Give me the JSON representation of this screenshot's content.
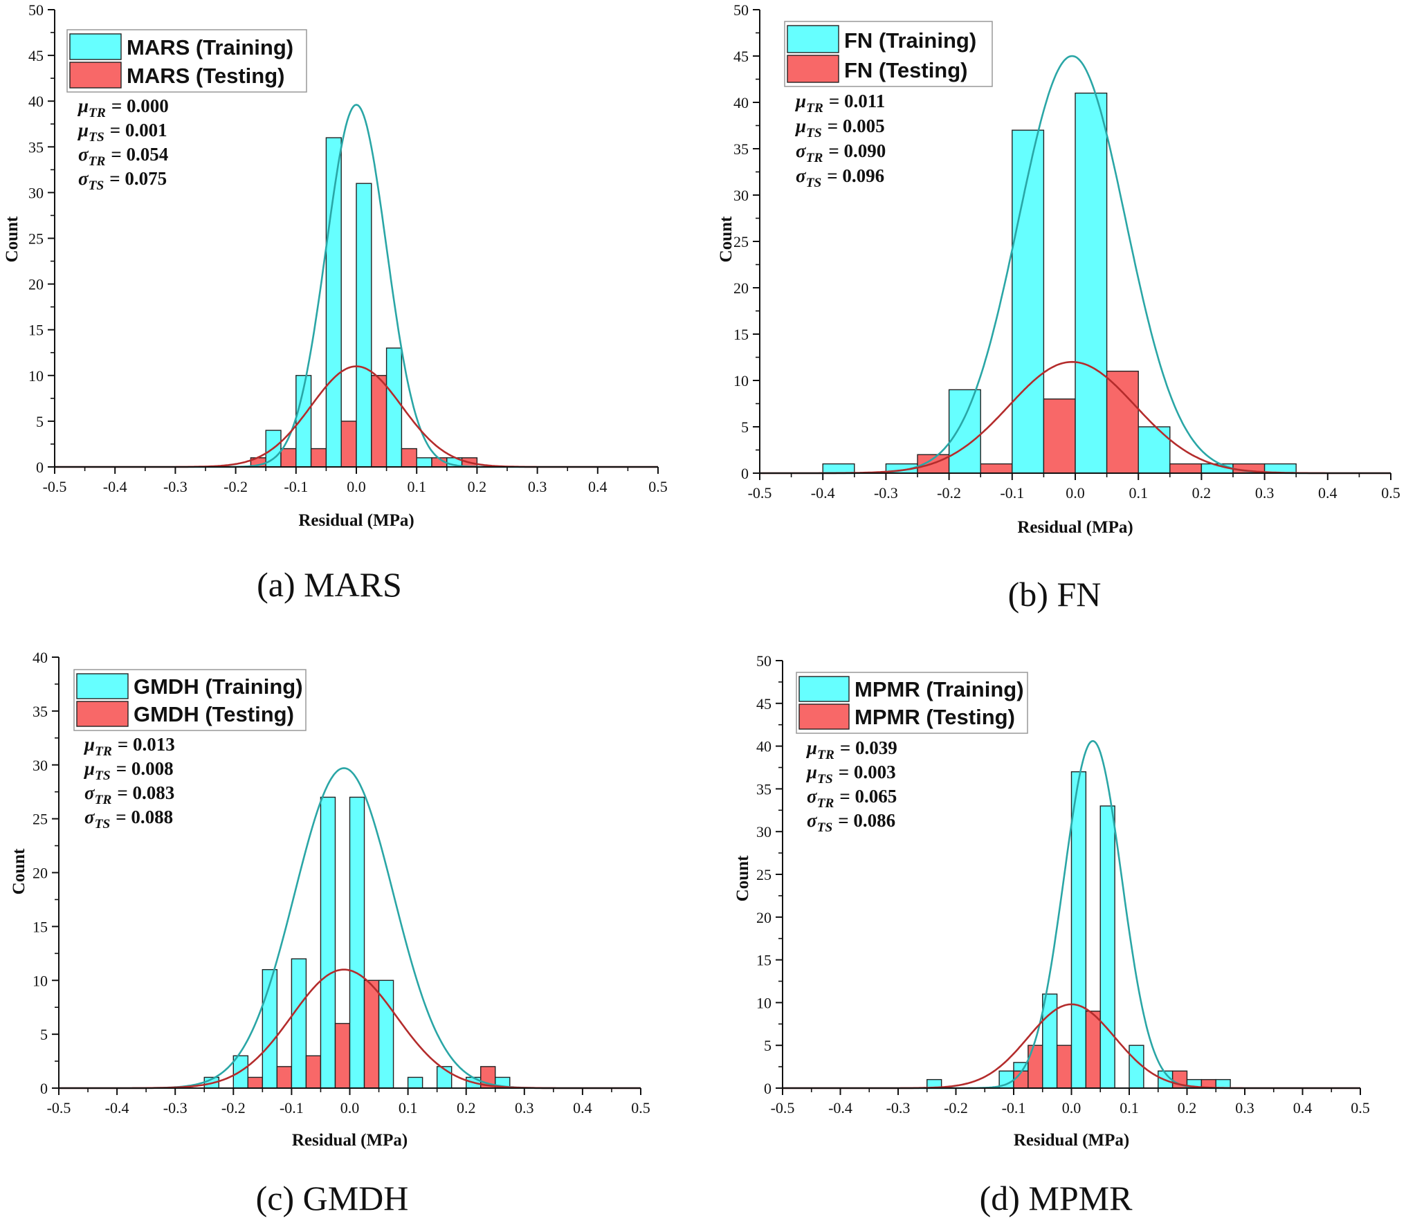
{
  "chart_data": [
    {
      "type": "histogram",
      "caption": "(a) MARS",
      "xlabel": "Residual (MPa)",
      "ylabel": "Count",
      "xlim": [
        -0.5,
        0.5
      ],
      "ylim": [
        0,
        50
      ],
      "xticks": [
        "-0.5",
        "-0.4",
        "-0.3",
        "-0.2",
        "-0.1",
        "0.0",
        "0.1",
        "0.2",
        "0.3",
        "0.4",
        "0.5"
      ],
      "yticks": [
        "0",
        "5",
        "10",
        "15",
        "20",
        "25",
        "30",
        "35",
        "40",
        "45",
        "50"
      ],
      "legend": [
        "MARS (Training)",
        "MARS (Testing)"
      ],
      "stats": [
        {
          "sym": "μ",
          "sub": "TR",
          "value": "= 0.000"
        },
        {
          "sym": "μ",
          "sub": "TS",
          "value": "= 0.001"
        },
        {
          "sym": "σ",
          "sub": "TR",
          "value": "=  0.054"
        },
        {
          "sym": "σ",
          "sub": "TS",
          "value": "=  0.075"
        }
      ],
      "series": [
        {
          "name": "MARS (Training)",
          "color": "#66ffff",
          "curve_color": "#2aa6a6",
          "bins": [
            {
              "x0": -0.15,
              "x1": -0.125,
              "count": 4
            },
            {
              "x0": -0.1,
              "x1": -0.075,
              "count": 10
            },
            {
              "x0": -0.05,
              "x1": -0.025,
              "count": 36
            },
            {
              "x0": 0.0,
              "x1": 0.025,
              "count": 31
            },
            {
              "x0": 0.05,
              "x1": 0.075,
              "count": 13
            },
            {
              "x0": 0.1,
              "x1": 0.125,
              "count": 1
            },
            {
              "x0": 0.15,
              "x1": 0.175,
              "count": 1
            }
          ],
          "curve": {
            "mean": 0.0,
            "peak": 39.6,
            "sd": 0.05
          }
        },
        {
          "name": "MARS (Testing)",
          "color": "#f86868",
          "curve_color": "#b42c2c",
          "bins": [
            {
              "x0": -0.175,
              "x1": -0.15,
              "count": 1
            },
            {
              "x0": -0.125,
              "x1": -0.1,
              "count": 2
            },
            {
              "x0": -0.075,
              "x1": -0.05,
              "count": 2
            },
            {
              "x0": -0.025,
              "x1": 0.0,
              "count": 5
            },
            {
              "x0": 0.025,
              "x1": 0.05,
              "count": 10
            },
            {
              "x0": 0.075,
              "x1": 0.1,
              "count": 2
            },
            {
              "x0": 0.125,
              "x1": 0.15,
              "count": 1
            },
            {
              "x0": 0.175,
              "x1": 0.2,
              "count": 1
            }
          ],
          "curve": {
            "mean": 0.0,
            "peak": 11.0,
            "sd": 0.075
          }
        }
      ]
    },
    {
      "type": "histogram",
      "caption": "(b) FN",
      "xlabel": "Residual (MPa)",
      "ylabel": "Count",
      "xlim": [
        -0.5,
        0.5
      ],
      "ylim": [
        0,
        50
      ],
      "xticks": [
        "-0.5",
        "-0.4",
        "-0.3",
        "-0.2",
        "-0.1",
        "0.0",
        "0.1",
        "0.2",
        "0.3",
        "0.4",
        "0.5"
      ],
      "yticks": [
        "0",
        "5",
        "10",
        "15",
        "20",
        "25",
        "30",
        "35",
        "40",
        "45",
        "50"
      ],
      "legend": [
        "FN (Training)",
        "FN (Testing)"
      ],
      "stats": [
        {
          "sym": "μ",
          "sub": "TR",
          "value": "= 0.011"
        },
        {
          "sym": "μ",
          "sub": "TS",
          "value": "= 0.005"
        },
        {
          "sym": "σ",
          "sub": "TR",
          "value": "=  0.090"
        },
        {
          "sym": "σ",
          "sub": "TS",
          "value": "=  0.096"
        }
      ],
      "series": [
        {
          "name": "FN (Training)",
          "color": "#66ffff",
          "curve_color": "#2aa6a6",
          "bins": [
            {
              "x0": -0.4,
              "x1": -0.35,
              "count": 1
            },
            {
              "x0": -0.3,
              "x1": -0.25,
              "count": 1
            },
            {
              "x0": -0.2,
              "x1": -0.15,
              "count": 9
            },
            {
              "x0": -0.1,
              "x1": -0.05,
              "count": 37
            },
            {
              "x0": 0.0,
              "x1": 0.05,
              "count": 41
            },
            {
              "x0": 0.1,
              "x1": 0.15,
              "count": 5
            },
            {
              "x0": 0.2,
              "x1": 0.25,
              "count": 1
            },
            {
              "x0": 0.3,
              "x1": 0.35,
              "count": 1
            }
          ],
          "curve": {
            "mean": -0.005,
            "peak": 45.0,
            "sd": 0.085
          }
        },
        {
          "name": "FN (Testing)",
          "color": "#f86868",
          "curve_color": "#b42c2c",
          "bins": [
            {
              "x0": -0.25,
              "x1": -0.2,
              "count": 2
            },
            {
              "x0": -0.15,
              "x1": -0.1,
              "count": 1
            },
            {
              "x0": -0.05,
              "x1": 0.0,
              "count": 8
            },
            {
              "x0": 0.05,
              "x1": 0.1,
              "count": 11
            },
            {
              "x0": 0.15,
              "x1": 0.2,
              "count": 1
            },
            {
              "x0": 0.25,
              "x1": 0.3,
              "count": 1
            }
          ],
          "curve": {
            "mean": -0.005,
            "peak": 12.0,
            "sd": 0.1
          }
        }
      ]
    },
    {
      "type": "histogram",
      "caption": "(c) GMDH",
      "xlabel": "Residual (MPa)",
      "ylabel": "Count",
      "xlim": [
        -0.5,
        0.5
      ],
      "ylim": [
        0,
        40
      ],
      "xticks": [
        "-0.5",
        "-0.4",
        "-0.3",
        "-0.2",
        "-0.1",
        "0.0",
        "0.1",
        "0.2",
        "0.3",
        "0.4",
        "0.5"
      ],
      "yticks": [
        "0",
        "5",
        "10",
        "15",
        "20",
        "25",
        "30",
        "35",
        "40"
      ],
      "legend": [
        "GMDH (Training)",
        "GMDH (Testing)"
      ],
      "stats": [
        {
          "sym": "μ",
          "sub": "TR",
          "value": "= 0.013"
        },
        {
          "sym": "μ",
          "sub": "TS",
          "value": "= 0.008"
        },
        {
          "sym": "σ",
          "sub": "TR",
          "value": "=  0.083"
        },
        {
          "sym": "σ",
          "sub": "TS",
          "value": "=  0.088"
        }
      ],
      "series": [
        {
          "name": "GMDH (Training)",
          "color": "#66ffff",
          "curve_color": "#2aa6a6",
          "bins": [
            {
              "x0": -0.25,
              "x1": -0.225,
              "count": 1
            },
            {
              "x0": -0.2,
              "x1": -0.175,
              "count": 3
            },
            {
              "x0": -0.15,
              "x1": -0.125,
              "count": 11
            },
            {
              "x0": -0.1,
              "x1": -0.075,
              "count": 12
            },
            {
              "x0": -0.05,
              "x1": -0.025,
              "count": 27
            },
            {
              "x0": 0.0,
              "x1": 0.025,
              "count": 27
            },
            {
              "x0": 0.05,
              "x1": 0.075,
              "count": 10
            },
            {
              "x0": 0.1,
              "x1": 0.125,
              "count": 1
            },
            {
              "x0": 0.15,
              "x1": 0.175,
              "count": 2
            },
            {
              "x0": 0.2,
              "x1": 0.225,
              "count": 1
            },
            {
              "x0": 0.25,
              "x1": 0.275,
              "count": 1
            }
          ],
          "curve": {
            "mean": -0.01,
            "peak": 29.7,
            "sd": 0.085
          }
        },
        {
          "name": "GMDH (Testing)",
          "color": "#f86868",
          "curve_color": "#b42c2c",
          "bins": [
            {
              "x0": -0.175,
              "x1": -0.15,
              "count": 1
            },
            {
              "x0": -0.125,
              "x1": -0.1,
              "count": 2
            },
            {
              "x0": -0.075,
              "x1": -0.05,
              "count": 3
            },
            {
              "x0": -0.025,
              "x1": 0.0,
              "count": 6
            },
            {
              "x0": 0.025,
              "x1": 0.05,
              "count": 10
            },
            {
              "x0": 0.225,
              "x1": 0.25,
              "count": 2
            }
          ],
          "curve": {
            "mean": -0.01,
            "peak": 11.0,
            "sd": 0.09
          }
        }
      ]
    },
    {
      "type": "histogram",
      "caption": "(d) MPMR",
      "xlabel": "Residual (MPa)",
      "ylabel": "Count",
      "xlim": [
        -0.5,
        0.5
      ],
      "ylim": [
        0,
        50
      ],
      "xticks": [
        "-0.5",
        "-0.4",
        "-0.3",
        "-0.2",
        "-0.1",
        "0.0",
        "0.1",
        "0.2",
        "0.3",
        "0.4",
        "0.5"
      ],
      "yticks": [
        "0",
        "5",
        "10",
        "15",
        "20",
        "25",
        "30",
        "35",
        "40",
        "45",
        "50"
      ],
      "legend": [
        "MPMR (Training)",
        "MPMR (Testing)"
      ],
      "stats": [
        {
          "sym": "μ",
          "sub": "TR",
          "value": "= 0.039"
        },
        {
          "sym": "μ",
          "sub": "TS",
          "value": "= 0.003"
        },
        {
          "sym": "σ",
          "sub": "TR",
          "value": "=  0.065"
        },
        {
          "sym": "σ",
          "sub": "TS",
          "value": "=  0.086"
        }
      ],
      "series": [
        {
          "name": "MPMR (Training)",
          "color": "#66ffff",
          "curve_color": "#2aa6a6",
          "bins": [
            {
              "x0": -0.25,
              "x1": -0.225,
              "count": 1
            },
            {
              "x0": -0.125,
              "x1": -0.1,
              "count": 2
            },
            {
              "x0": -0.1,
              "x1": -0.075,
              "count": 3
            },
            {
              "x0": -0.05,
              "x1": -0.025,
              "count": 11
            },
            {
              "x0": 0.0,
              "x1": 0.025,
              "count": 37
            },
            {
              "x0": 0.05,
              "x1": 0.075,
              "count": 33
            },
            {
              "x0": 0.1,
              "x1": 0.125,
              "count": 5
            },
            {
              "x0": 0.15,
              "x1": 0.175,
              "count": 2
            },
            {
              "x0": 0.2,
              "x1": 0.225,
              "count": 1
            },
            {
              "x0": 0.25,
              "x1": 0.275,
              "count": 1
            }
          ],
          "curve": {
            "mean": 0.037,
            "peak": 40.6,
            "sd": 0.05
          }
        },
        {
          "name": "MPMR (Testing)",
          "color": "#f86868",
          "curve_color": "#b42c2c",
          "bins": [
            {
              "x0": -0.1,
              "x1": -0.075,
              "count": 2
            },
            {
              "x0": -0.075,
              "x1": -0.05,
              "count": 5
            },
            {
              "x0": -0.025,
              "x1": 0.0,
              "count": 5
            },
            {
              "x0": 0.025,
              "x1": 0.05,
              "count": 9
            },
            {
              "x0": 0.175,
              "x1": 0.2,
              "count": 2
            },
            {
              "x0": 0.225,
              "x1": 0.25,
              "count": 1
            }
          ],
          "curve": {
            "mean": 0.0,
            "peak": 9.8,
            "sd": 0.075
          }
        }
      ]
    }
  ]
}
